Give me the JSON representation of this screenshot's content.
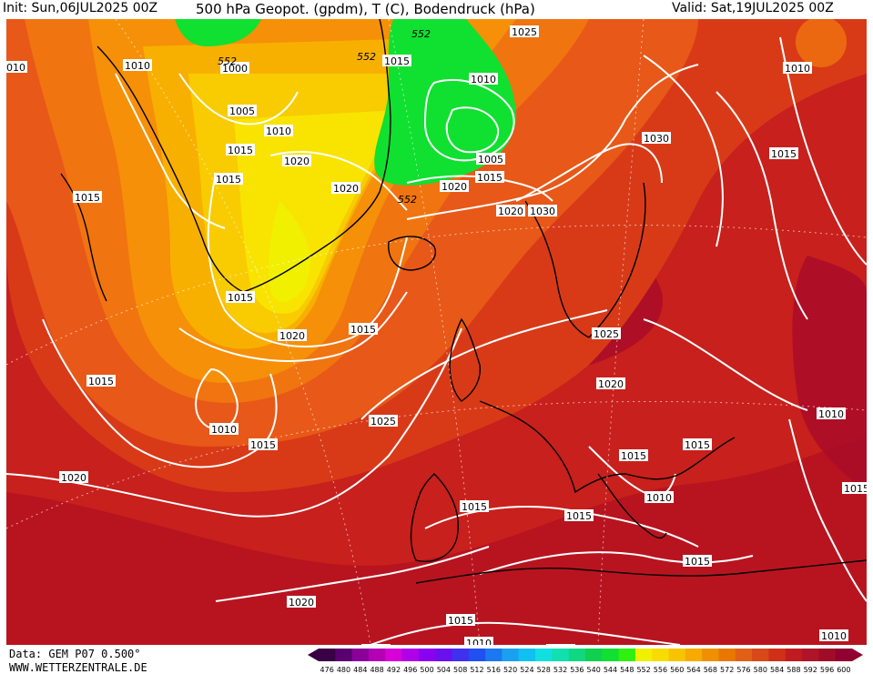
{
  "header": {
    "init_label": "Init: Sun,06JUL2025 00Z",
    "title": "500 hPa Geopot. (gpdm), T (C), Bodendruck (hPa)",
    "valid_label": "Valid: Sat,19JUL2025 00Z"
  },
  "footer": {
    "data_label": "Data: GEM P07 0.500°",
    "website": "WWW.WETTERZENTRALE.DE"
  },
  "color_scale": {
    "values": [
      "476",
      "480",
      "484",
      "488",
      "492",
      "496",
      "500",
      "504",
      "508",
      "512",
      "516",
      "520",
      "524",
      "528",
      "532",
      "536",
      "540",
      "544",
      "548",
      "552",
      "556",
      "560",
      "564",
      "568",
      "572",
      "576",
      "580",
      "584",
      "588",
      "592",
      "596",
      "600"
    ],
    "colors": [
      "#3a0045",
      "#5a0070",
      "#8a0098",
      "#b400b4",
      "#d800d8",
      "#b000e8",
      "#8a00f0",
      "#6a10f0",
      "#4030f0",
      "#2050f0",
      "#1a78f0",
      "#1aa0f0",
      "#10c0f0",
      "#10e0e0",
      "#10e0b0",
      "#10d880",
      "#10d050",
      "#10e030",
      "#30f010",
      "#f0f000",
      "#f8dc00",
      "#f8c400",
      "#f8aa00",
      "#f09000",
      "#e87800",
      "#e06018",
      "#d84818",
      "#d03018",
      "#c01c20",
      "#b01428",
      "#a00c28",
      "#900030"
    ]
  },
  "pressure_labels": [
    "010",
    "1010",
    "1000",
    "1005",
    "1010",
    "1015",
    "1015",
    "1020",
    "1020",
    "1015",
    "1010",
    "1005",
    "1015",
    "1020",
    "1020",
    "1025",
    "1030",
    "1010",
    "1015",
    "1015",
    "1020",
    "1015",
    "1015",
    "1025",
    "1025",
    "1020",
    "1010",
    "1015",
    "1015",
    "1015",
    "1020",
    "1015",
    "1015",
    "1010",
    "1015",
    "1020",
    "1015",
    "1015",
    "1015",
    "1010",
    "1030",
    "1010",
    "1015",
    "1015",
    "1010"
  ],
  "height_labels": [
    "552",
    "552",
    "552",
    "552"
  ]
}
